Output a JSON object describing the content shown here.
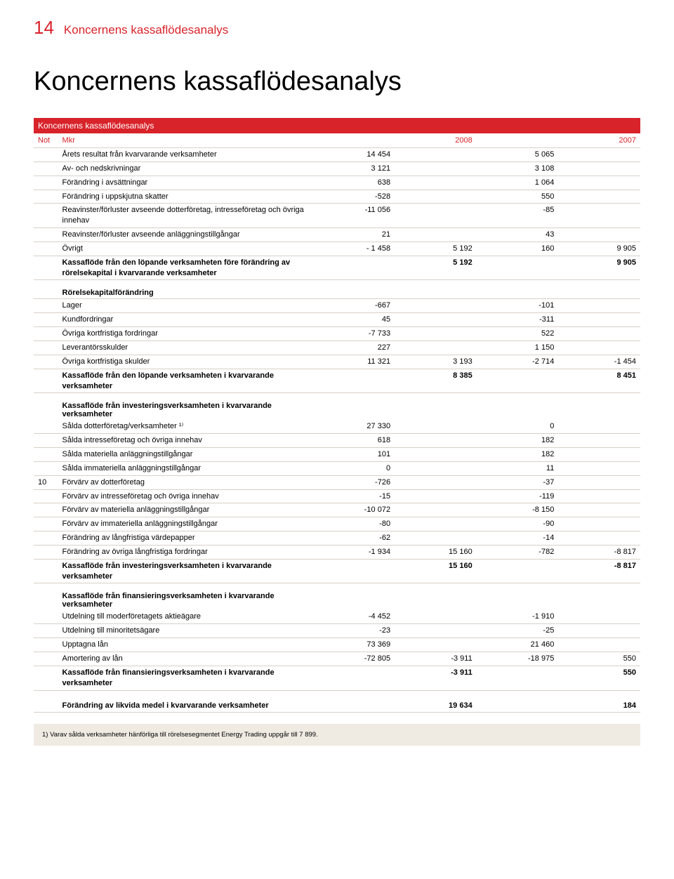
{
  "page_number": "14",
  "header_title": "Koncernens kassaflödesanalys",
  "main_title": "Koncernens kassaflödesanalys",
  "table_title": "Koncernens kassaflödesanalys",
  "colhead": {
    "c1": "Not",
    "c2": "Mkr",
    "c3": "2008",
    "c4": "2007"
  },
  "colors": {
    "accent": "#d8232a",
    "rule": "#d8d0c8",
    "footnote_bg": "#efeae2"
  },
  "rows": [
    {
      "label": "Årets resultat från kvarvarande verksamheter",
      "v1": "14 454",
      "v3": "5 065"
    },
    {
      "label": "Av- och nedskrivningar",
      "v1": "3 121",
      "v3": "3 108"
    },
    {
      "label": "Förändring i avsättningar",
      "v1": "638",
      "v3": "1 064"
    },
    {
      "label": "Förändring i uppskjutna skatter",
      "v1": "-528",
      "v3": "550"
    },
    {
      "label": "Reavinster/förluster avseende dotterföretag, intresseföretag och övriga innehav",
      "v1": "-11 056",
      "v3": "-85"
    },
    {
      "label": "Reavinster/förluster avseende anläggningstillgångar",
      "v1": "21",
      "v3": "43"
    },
    {
      "label": "Övrigt",
      "v1": "- 1 458",
      "v2": "5 192",
      "v3": "160",
      "v4": "9 905"
    },
    {
      "label": "Kassaflöde från den löpande verksamheten före förändring av rörelsekapital i kvarvarande verksamheter",
      "v2": "5 192",
      "v4": "9 905",
      "bold": true
    }
  ],
  "sec2_title": "Rörelsekapitalförändring",
  "sec2": [
    {
      "label": "Lager",
      "v1": "-667",
      "v3": "-101"
    },
    {
      "label": "Kundfordringar",
      "v1": "45",
      "v3": "-311"
    },
    {
      "label": "Övriga kortfristiga fordringar",
      "v1": "-7 733",
      "v3": "522"
    },
    {
      "label": "Leverantörsskulder",
      "v1": "227",
      "v3": "1 150"
    },
    {
      "label": "Övriga kortfristiga skulder",
      "v1": "11 321",
      "v2": "3 193",
      "v3": "-2 714",
      "v4": "-1 454"
    },
    {
      "label": "Kassaflöde från den löpande verksamheten i kvarvarande verksamheter",
      "v2": "8 385",
      "v4": "8 451",
      "bold": true
    }
  ],
  "sec3_title": "Kassaflöde från investeringsverksamheten i kvarvarande verksamheter",
  "sec3": [
    {
      "label": "Sålda dotterföretag/verksamheter ¹⁾",
      "v1": "27 330",
      "v3": "0"
    },
    {
      "label": "Sålda intresseföretag och övriga innehav",
      "v1": "618",
      "v3": "182"
    },
    {
      "label": "Sålda materiella anläggningstillgångar",
      "v1": "101",
      "v3": "182"
    },
    {
      "label": "Sålda immateriella anläggningstillgångar",
      "v1": "0",
      "v3": "11"
    },
    {
      "not": "10",
      "label": "Förvärv av dotterföretag",
      "v1": "-726",
      "v3": "-37"
    },
    {
      "label": "Förvärv av intresseföretag och övriga innehav",
      "v1": "-15",
      "v3": "-119"
    },
    {
      "label": "Förvärv av materiella anläggningstillgångar",
      "v1": "-10 072",
      "v3": "-8 150"
    },
    {
      "label": "Förvärv av immateriella anläggningstillgångar",
      "v1": "-80",
      "v3": "-90"
    },
    {
      "label": "Förändring av långfristiga värdepapper",
      "v1": "-62",
      "v3": "-14"
    },
    {
      "label": "Förändring av övriga långfristiga fordringar",
      "v1": "-1 934",
      "v2": "15 160",
      "v3": "-782",
      "v4": "-8 817"
    },
    {
      "label": "Kassaflöde från investeringsverksamheten i kvarvarande verksamheter",
      "v2": "15 160",
      "v4": "-8 817",
      "bold": true
    }
  ],
  "sec4_title": "Kassaflöde från finansieringsverksamheten i kvarvarande verksamheter",
  "sec4": [
    {
      "label": "Utdelning till moderföretagets aktieägare",
      "v1": "-4 452",
      "v3": "-1 910"
    },
    {
      "label": "Utdelning till minoritetsägare",
      "v1": "-23",
      "v3": "-25"
    },
    {
      "label": "Upptagna lån",
      "v1": "73 369",
      "v3": "21 460"
    },
    {
      "label": "Amortering av lån",
      "v1": "-72 805",
      "v2": "-3 911",
      "v3": "-18 975",
      "v4": "550"
    },
    {
      "label": "Kassaflöde från finansieringsverksamheten i kvarvarande verksamheter",
      "v2": "-3 911",
      "v4": "550",
      "bold": true
    }
  ],
  "sec5": [
    {
      "label": "Förändring av likvida medel i kvarvarande verksamheter",
      "v2": "19 634",
      "v4": "184",
      "bold": true
    }
  ],
  "footnote": "1) Varav sålda verksamheter hänförliga till rörelsesegmentet Energy Trading uppgår till 7 899."
}
